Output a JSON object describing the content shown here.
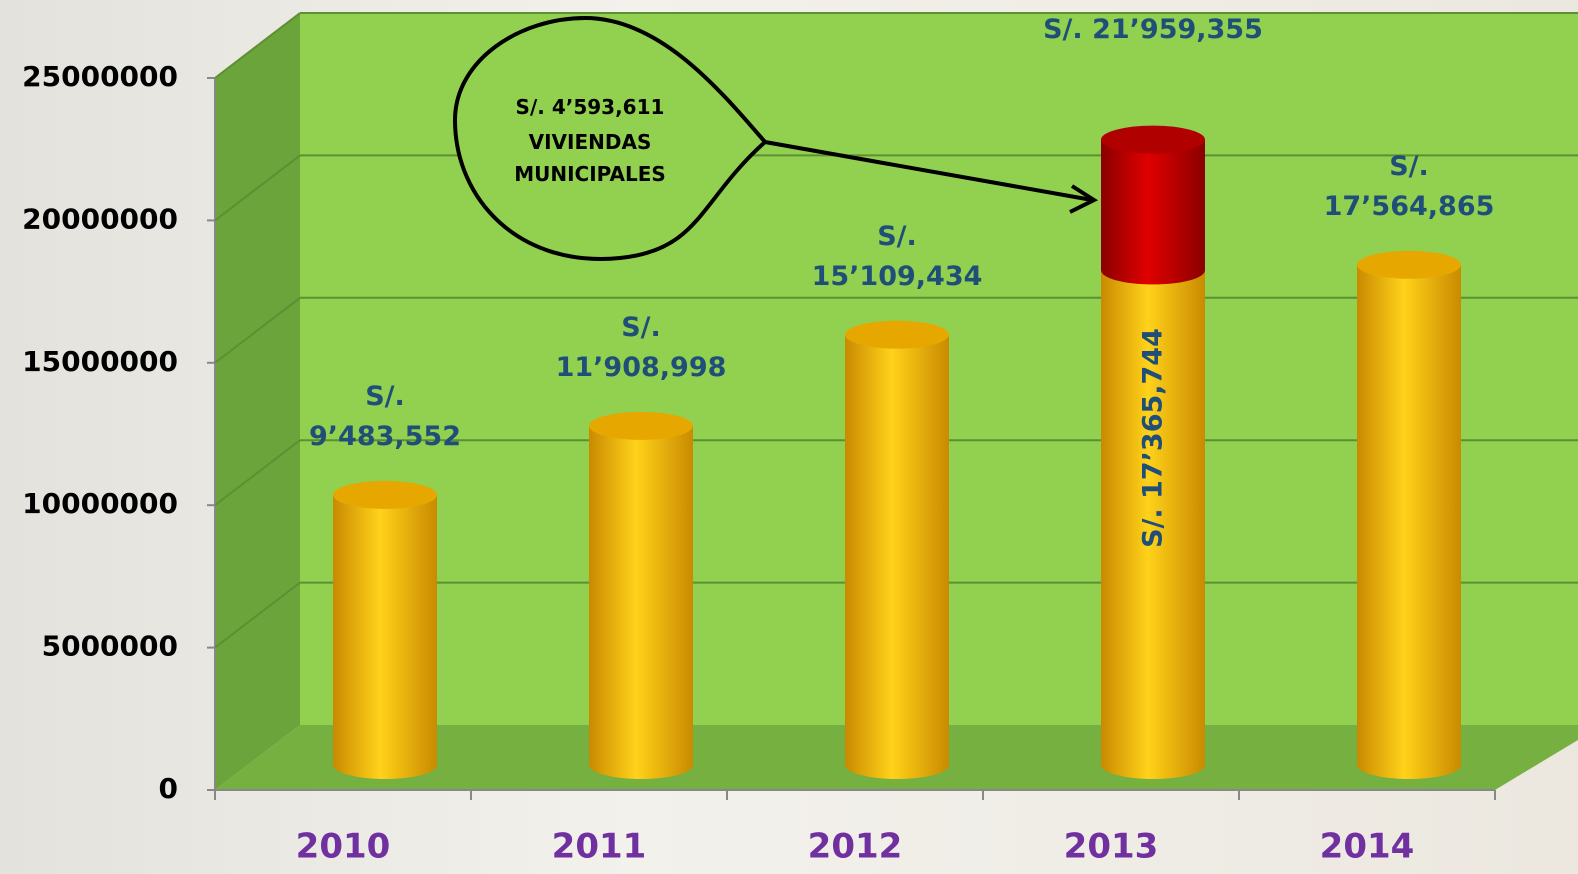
{
  "chart_data": {
    "type": "bar",
    "stacked": true,
    "categories": [
      "2010",
      "2011",
      "2012",
      "2013",
      "2014"
    ],
    "series": [
      {
        "color": "#f2b600",
        "values": [
          9483552,
          11908998,
          15109434,
          17365744,
          17564865
        ],
        "value_labels": [
          "S/. 9’483,552",
          "S/. 11’908,998",
          "S/. 15’109,434",
          "S/. 17’365,744",
          "S/. 17’564,865"
        ]
      },
      {
        "color": "#c00000",
        "values": [
          null,
          null,
          null,
          4593611,
          null
        ],
        "value_labels": [
          null,
          null,
          null,
          "S/. 4’593,611",
          null
        ]
      }
    ],
    "totals": [
      null,
      null,
      null,
      21959355,
      null
    ],
    "total_labels": [
      null,
      null,
      null,
      "S/. 21’959,355",
      null
    ],
    "callout_text": "VIVIENDAS MUNICIPALES",
    "ylim": [
      0,
      25000000
    ],
    "yticks": [
      0,
      5000000,
      10000000,
      15000000,
      20000000,
      25000000
    ],
    "grid": true
  }
}
